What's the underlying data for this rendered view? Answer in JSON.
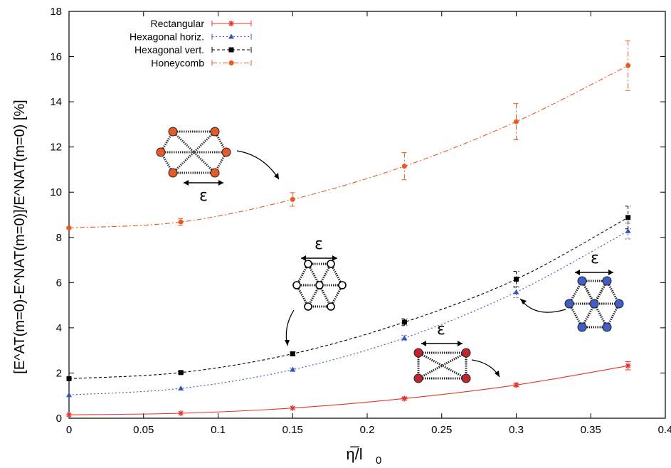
{
  "chart_data": {
    "type": "line",
    "title": "",
    "xlabel_main": "η̅/l",
    "xlabel_sub": "0",
    "ylabel": "[E^AT(m=0)-E^NAT(m=0)]/E^NAT(m=0) [%]",
    "xlim": [
      0,
      0.4
    ],
    "ylim": [
      0,
      18
    ],
    "xticks": [
      0,
      0.05,
      0.1,
      0.15,
      0.2,
      0.25,
      0.3,
      0.35,
      0.4
    ],
    "xtick_labels": [
      "0",
      "0.05",
      "0.1",
      "0.15",
      "0.2",
      "0.25",
      "0.3",
      "0.35",
      "0.4"
    ],
    "yticks": [
      0,
      2,
      4,
      6,
      8,
      10,
      12,
      14,
      16,
      18
    ],
    "ytick_labels": [
      "0",
      "2",
      "4",
      "6",
      "8",
      "10",
      "12",
      "14",
      "16",
      "18"
    ],
    "grid": false,
    "legend_position": "top-left",
    "series": [
      {
        "name": "Rectangular",
        "color": "#e8332a",
        "marker": "star",
        "dash": "solid",
        "x": [
          0,
          0.075,
          0.15,
          0.225,
          0.3,
          0.375
        ],
        "y": [
          0.15,
          0.22,
          0.45,
          0.87,
          1.47,
          2.32
        ],
        "err": [
          0.02,
          0.03,
          0.04,
          0.06,
          0.08,
          0.18
        ]
      },
      {
        "name": "Hexagonal horiz.",
        "color": "#3355bb",
        "marker": "triangle",
        "dash": "dotted",
        "x": [
          0,
          0.075,
          0.15,
          0.225,
          0.3,
          0.375
        ],
        "y": [
          1.03,
          1.32,
          2.15,
          3.55,
          5.58,
          8.28
        ],
        "err": [
          0.02,
          0.04,
          0.06,
          0.12,
          0.25,
          0.35
        ]
      },
      {
        "name": "Hexagonal vert.",
        "color": "#000000",
        "marker": "square",
        "dash": "dashed",
        "x": [
          0,
          0.075,
          0.15,
          0.225,
          0.3,
          0.375
        ],
        "y": [
          1.75,
          2.02,
          2.85,
          4.25,
          6.15,
          8.88
        ],
        "err": [
          0.02,
          0.05,
          0.08,
          0.15,
          0.35,
          0.5
        ]
      },
      {
        "name": "Honeycomb",
        "color": "#e85a1f",
        "marker": "circle",
        "dash": "dashdot",
        "x": [
          0,
          0.075,
          0.15,
          0.225,
          0.3,
          0.375
        ],
        "y": [
          8.42,
          8.68,
          9.68,
          11.15,
          13.12,
          15.6
        ],
        "err": [
          0.05,
          0.15,
          0.3,
          0.6,
          0.8,
          1.1
        ]
      }
    ],
    "annotations": [
      "ε",
      "ε",
      "ε",
      "ε"
    ]
  }
}
